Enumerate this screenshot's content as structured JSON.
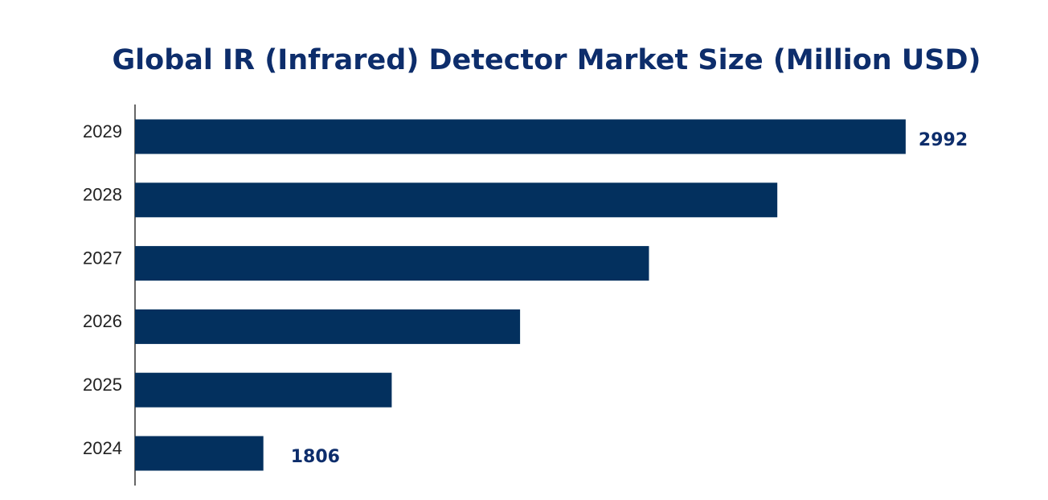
{
  "chart_data": {
    "type": "bar",
    "orientation": "horizontal",
    "title": "Global IR (Infrared) Detector Market Size (Million USD)",
    "categories": [
      "2024",
      "2025",
      "2026",
      "2027",
      "2028",
      "2029"
    ],
    "values": [
      1806,
      2043,
      2280,
      2518,
      2755,
      2992
    ],
    "show_value_label": [
      true,
      false,
      false,
      false,
      false,
      true
    ],
    "color": "#03305e",
    "label_color": "#0d2d6b",
    "xlim": [
      1569,
      3145
    ],
    "grid": false
  }
}
